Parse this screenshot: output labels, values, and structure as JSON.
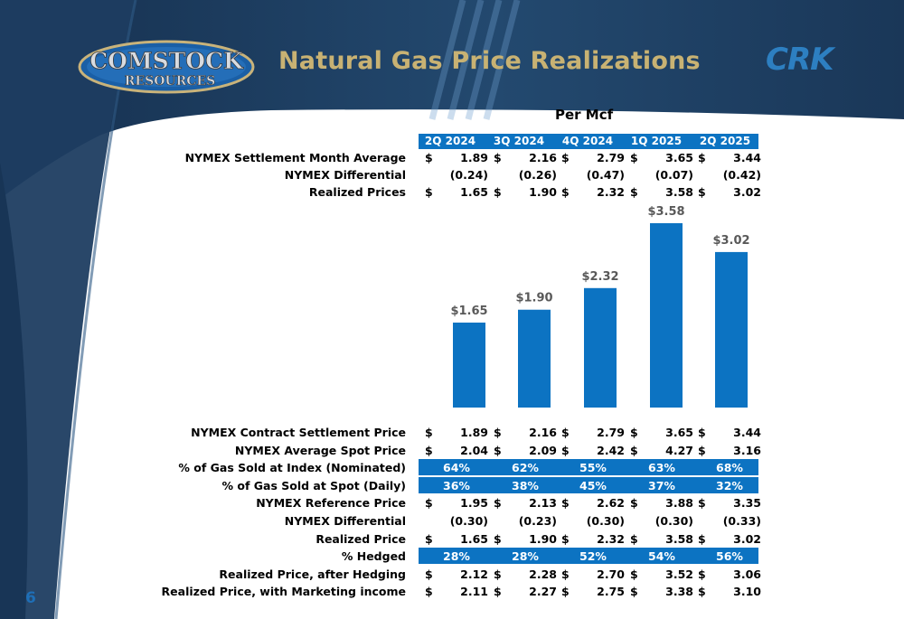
{
  "header": {
    "title": "Natural Gas Price Realizations",
    "logo_line1": "COMSTOCK",
    "logo_line2": "RESOURCES",
    "ticker": "CRK"
  },
  "page_number": "6",
  "colors": {
    "bar": "#0c73c2",
    "title_gold": "#c8b273",
    "navy": "#1b3a5c"
  },
  "chart_data": {
    "type": "bar",
    "title": "Per Mcf",
    "categories": [
      "2Q 2024",
      "3Q 2024",
      "4Q 2024",
      "1Q 2025",
      "2Q 2025"
    ],
    "values": [
      1.65,
      1.9,
      2.32,
      3.58,
      3.02
    ],
    "data_labels": [
      "$1.65",
      "$1.90",
      "$2.32",
      "$3.58",
      "$3.02"
    ],
    "ylim": [
      0,
      3.58
    ],
    "grid": false
  },
  "top_table": [
    {
      "label": "NYMEX Settlement Month Average",
      "dollar": true,
      "values": [
        "1.89",
        "2.16",
        "2.79",
        "3.65",
        "3.44"
      ]
    },
    {
      "label": "NYMEX Differential",
      "dollar": false,
      "values": [
        "(0.24)",
        "(0.26)",
        "(0.47)",
        "(0.07)",
        "(0.42)"
      ]
    },
    {
      "label": "Realized Prices",
      "dollar": true,
      "values": [
        "1.65",
        "1.90",
        "2.32",
        "3.58",
        "3.02"
      ]
    }
  ],
  "bottom_table": [
    {
      "label": "NYMEX Contract Settlement Price",
      "kind": "dollar",
      "values": [
        "1.89",
        "2.16",
        "2.79",
        "3.65",
        "3.44"
      ]
    },
    {
      "label": "NYMEX Average Spot Price",
      "kind": "dollar",
      "values": [
        "2.04",
        "2.09",
        "2.42",
        "4.27",
        "3.16"
      ]
    },
    {
      "label": "% of Gas Sold at Index (Nominated)",
      "kind": "pct",
      "values": [
        "64%",
        "62%",
        "55%",
        "63%",
        "68%"
      ]
    },
    {
      "label": "% of Gas Sold at Spot (Daily)",
      "kind": "pct",
      "values": [
        "36%",
        "38%",
        "45%",
        "37%",
        "32%"
      ]
    },
    {
      "label": "NYMEX Reference Price",
      "kind": "dollar",
      "values": [
        "1.95",
        "2.13",
        "2.62",
        "3.88",
        "3.35"
      ]
    },
    {
      "label": "NYMEX Differential",
      "kind": "plain",
      "values": [
        "(0.30)",
        "(0.23)",
        "(0.30)",
        "(0.30)",
        "(0.33)"
      ]
    },
    {
      "label": "Realized Price",
      "kind": "dollar",
      "values": [
        "1.65",
        "1.90",
        "2.32",
        "3.58",
        "3.02"
      ]
    },
    {
      "label": "% Hedged",
      "kind": "pct",
      "values": [
        "28%",
        "28%",
        "52%",
        "54%",
        "56%"
      ]
    },
    {
      "label": "Realized Price, after Hedging",
      "kind": "dollar",
      "values": [
        "2.12",
        "2.28",
        "2.70",
        "3.52",
        "3.06"
      ]
    },
    {
      "label": "Realized Price, with Marketing income",
      "kind": "dollar",
      "values": [
        "2.11",
        "2.27",
        "2.75",
        "3.38",
        "3.10"
      ]
    }
  ]
}
